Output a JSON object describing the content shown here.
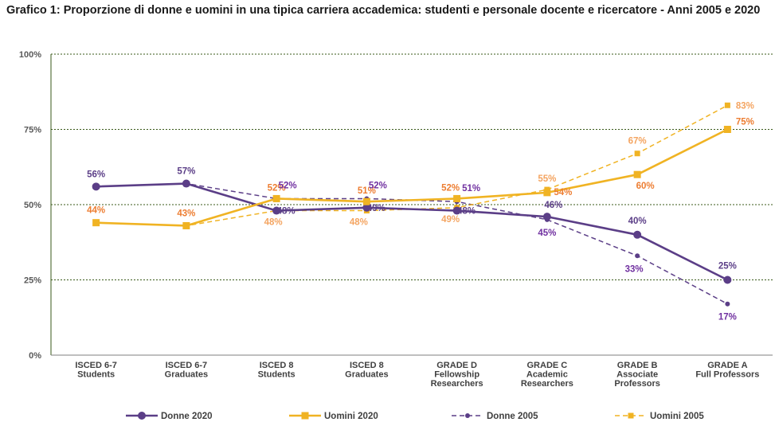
{
  "chart_data": {
    "type": "line",
    "title": "Grafico 1: Proporzione di donne e uomini in una tipica carriera accademica: studenti e personale docente e ricercatore - Anni 2005 e 2020",
    "categories": [
      [
        "ISCED 6-7",
        "Students"
      ],
      [
        "ISCED 6-7",
        "Graduates"
      ],
      [
        "ISCED 8",
        "Students"
      ],
      [
        "ISCED 8",
        "Graduates"
      ],
      [
        "GRADE D",
        "Fellowship",
        "Researchers"
      ],
      [
        "GRADE C",
        "Academic",
        "Researchers"
      ],
      [
        "GRADE B",
        "Associate",
        "Professors"
      ],
      [
        "GRADE A",
        "Full Professors"
      ]
    ],
    "yticks": [
      "0%",
      "25%",
      "50%",
      "75%",
      "100%"
    ],
    "ylim": [
      0,
      100
    ],
    "grid": true,
    "legend_position": "bottom",
    "series": [
      {
        "name": "Donne 2020",
        "color": "#5b3e87",
        "style": "solid",
        "marker": "circle",
        "values": [
          56,
          57,
          48,
          49,
          48,
          46,
          40,
          25
        ],
        "labels": [
          "56%",
          "57%",
          "48%",
          "49%",
          "48%",
          "46%",
          "40%",
          "25%"
        ]
      },
      {
        "name": "Uomini 2020",
        "color": "#f0b323",
        "style": "solid",
        "marker": "square",
        "values": [
          44,
          43,
          52,
          51,
          52,
          54,
          60,
          75
        ],
        "labels": [
          "44%",
          "43%",
          "52%",
          "51%",
          "52%",
          "54%",
          "60%",
          "75%"
        ]
      },
      {
        "name": "Donne 2005",
        "color": "#5b3e87",
        "style": "dashed",
        "marker": "circle",
        "values": [
          56,
          57,
          52,
          52,
          51,
          45,
          33,
          17
        ],
        "labels": [
          "",
          "",
          "52%",
          "52%",
          "51%",
          "45%",
          "33%",
          "17%"
        ]
      },
      {
        "name": "Uomini 2005",
        "color": "#f0b323",
        "style": "dashed",
        "marker": "square",
        "values": [
          44,
          43,
          48,
          48,
          49,
          55,
          67,
          83
        ],
        "labels": [
          "",
          "",
          "48%",
          "48%",
          "49%",
          "55%",
          "67%",
          "83%"
        ]
      }
    ]
  },
  "colors": {
    "donne": "#5b3e87",
    "uomini": "#f0b323",
    "uomini_label_2020": "#ed7d31",
    "uomini_label_2005": "#f4a460",
    "donne_label_2005": "#7030a0"
  }
}
